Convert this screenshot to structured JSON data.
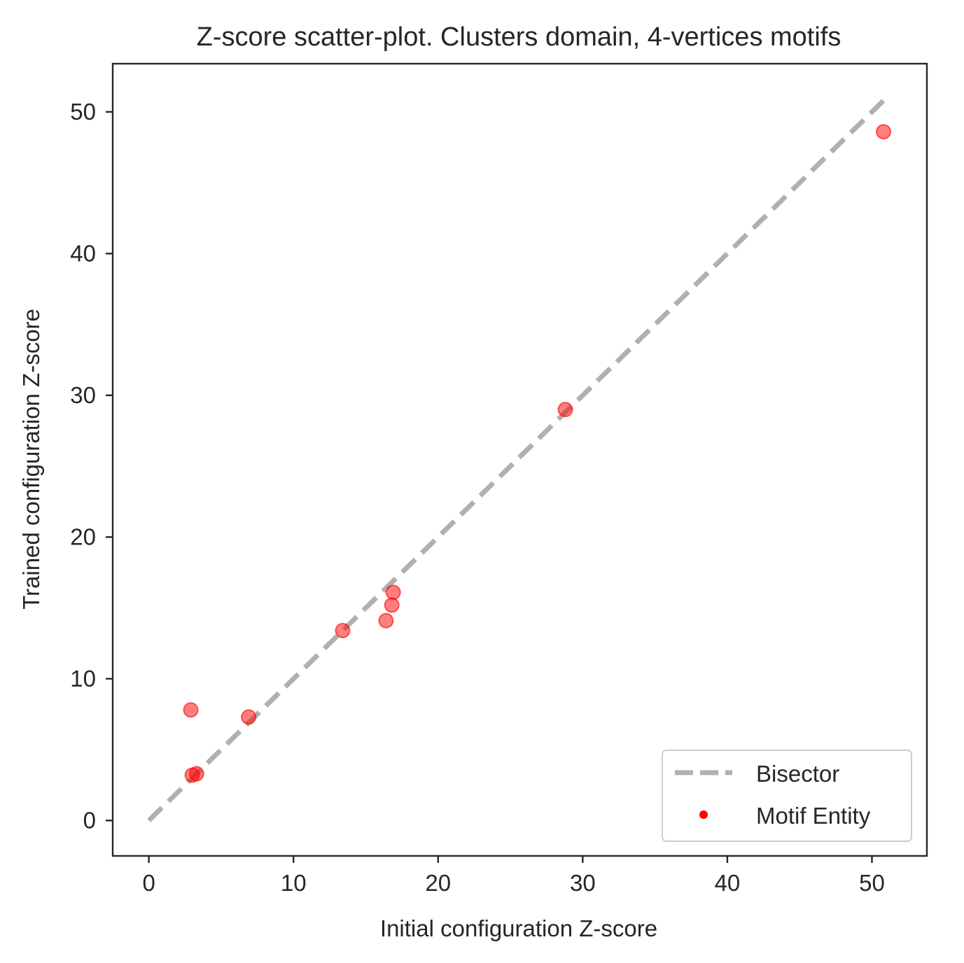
{
  "chart_data": {
    "type": "scatter",
    "title": "Z-score scatter-plot. Clusters domain, 4-vertices motifs",
    "xlabel": "Initial configuration Z-score",
    "ylabel": "Trained configuration Z-score",
    "xlim": [
      -2.5,
      53.8
    ],
    "ylim": [
      -2.5,
      53.4
    ],
    "xticks": [
      0,
      10,
      20,
      30,
      40,
      50
    ],
    "yticks": [
      0,
      10,
      20,
      30,
      40,
      50
    ],
    "grid": false,
    "legend_position": "bottom-right",
    "series": [
      {
        "name": "Bisector",
        "kind": "line",
        "style": "dashed",
        "color": "#b0b0b0",
        "x": [
          0,
          50.8
        ],
        "y": [
          0,
          50.8
        ]
      },
      {
        "name": "Motif Entity",
        "kind": "points",
        "color": "#ff0000",
        "alpha": 0.5,
        "x": [
          2.9,
          3.0,
          3.3,
          6.9,
          13.4,
          16.4,
          16.8,
          16.9,
          28.8,
          50.8
        ],
        "y": [
          7.8,
          3.2,
          3.3,
          7.3,
          13.4,
          14.1,
          15.2,
          16.1,
          29.0,
          48.6
        ]
      }
    ]
  }
}
